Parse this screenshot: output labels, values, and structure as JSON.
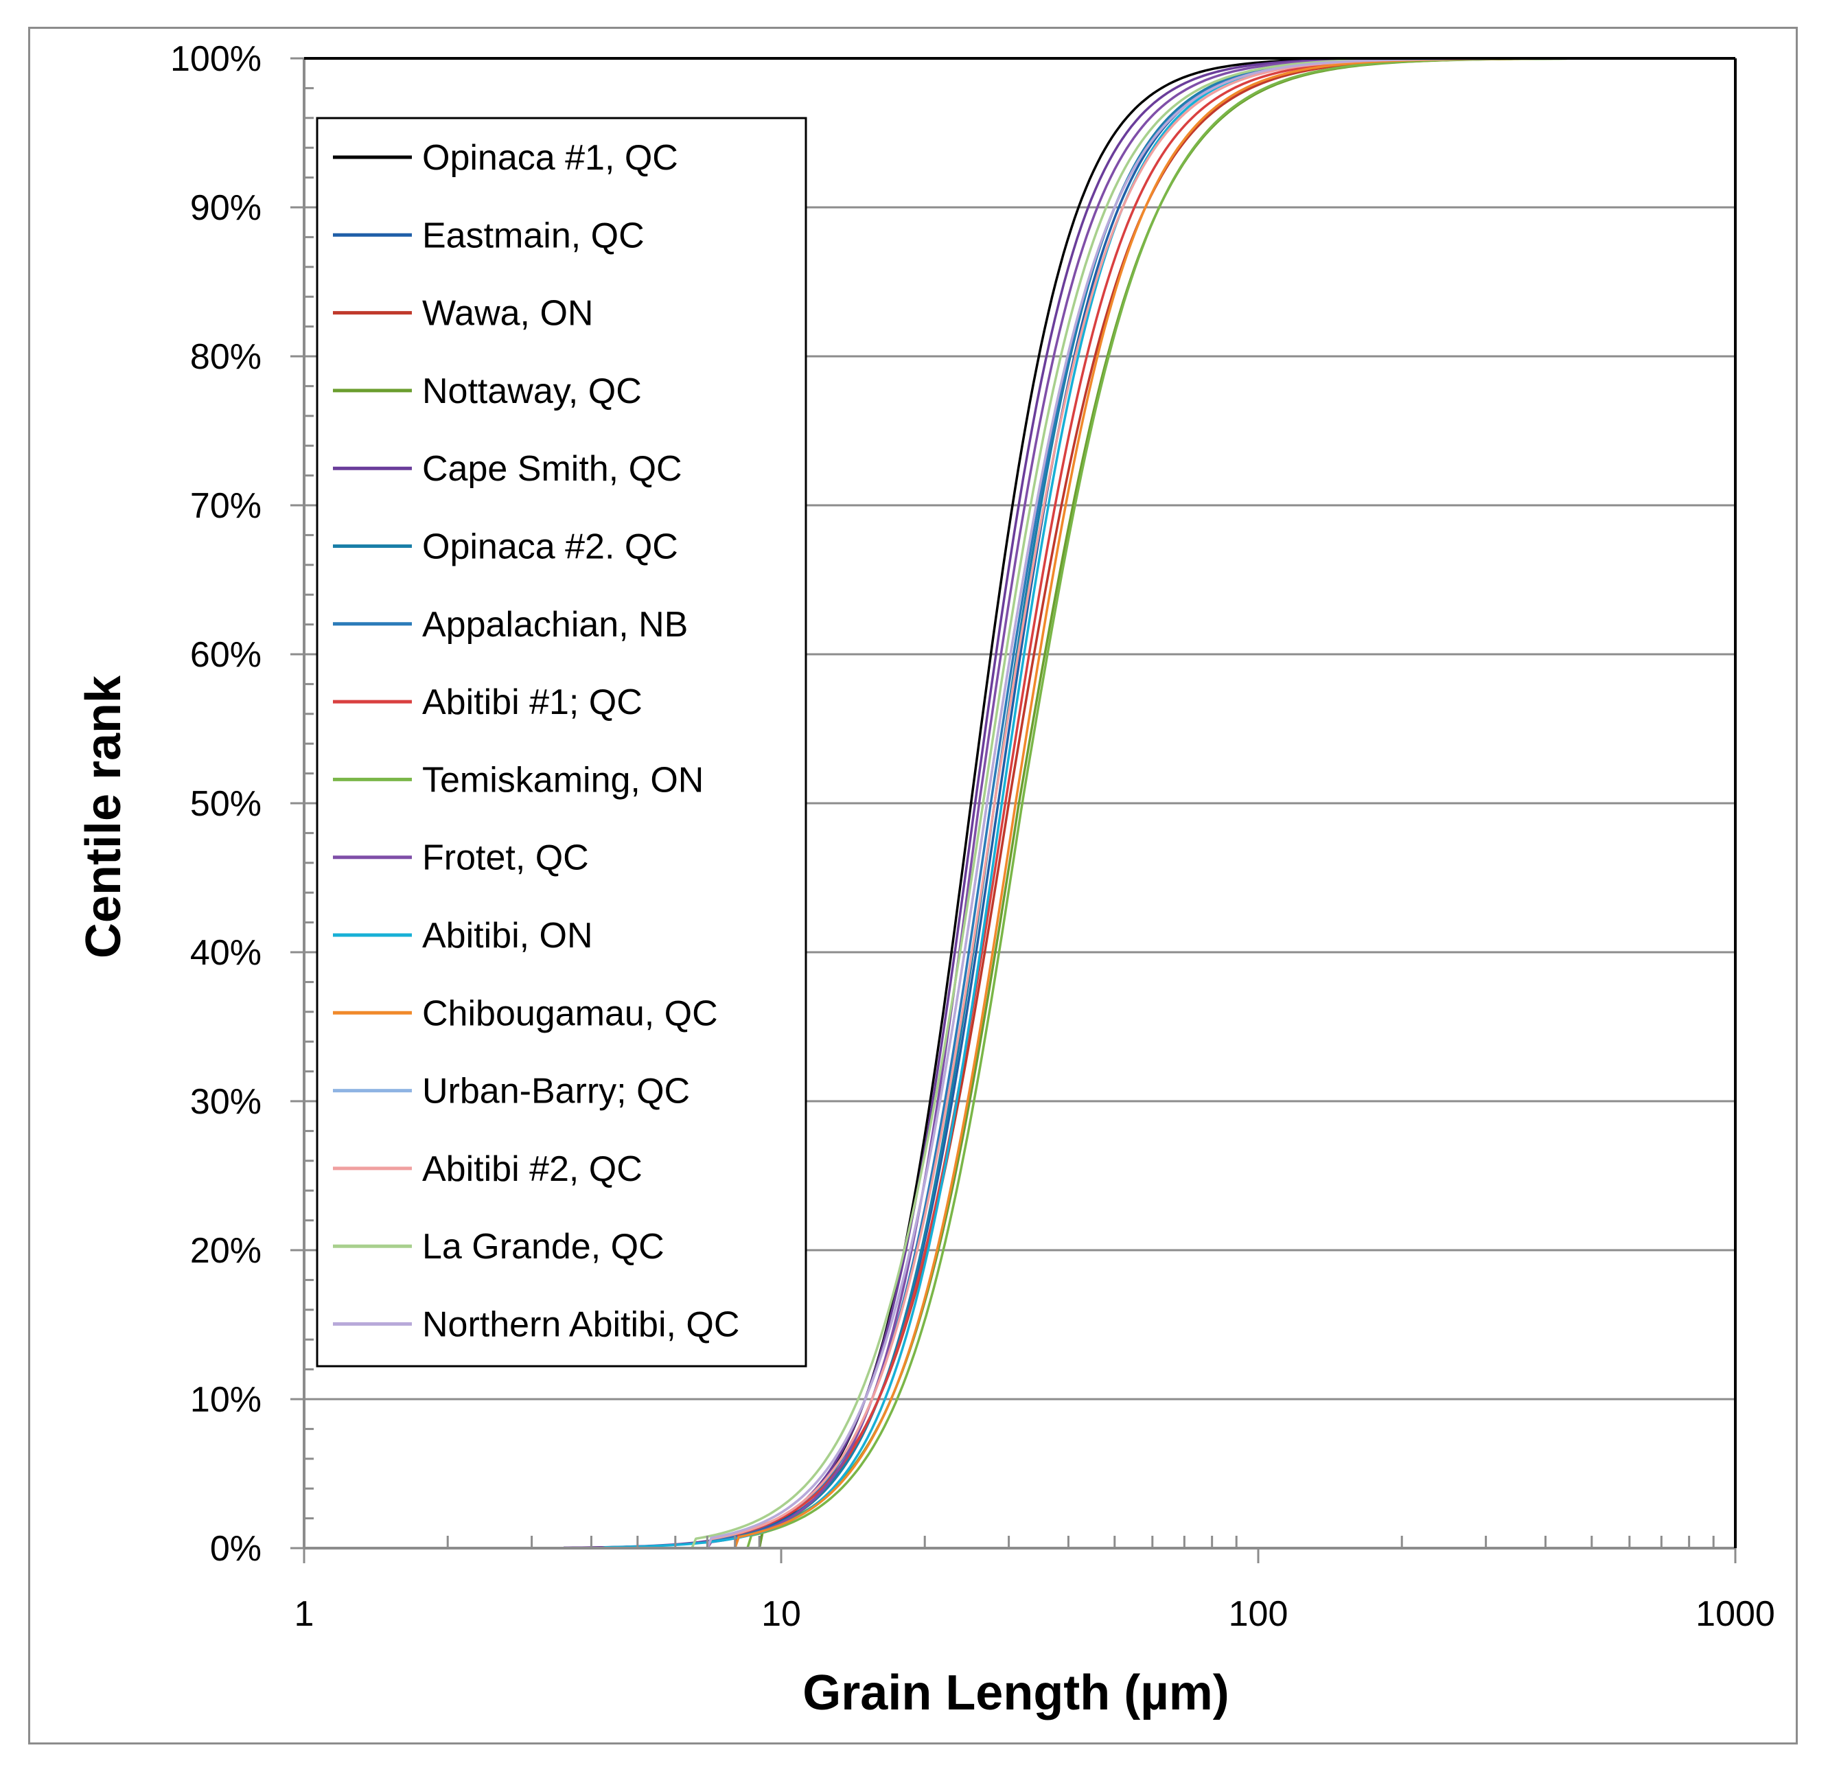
{
  "chart_data": {
    "type": "line",
    "xlabel": "Grain Length (µm)",
    "ylabel": "Centile rank",
    "x_scale": "log",
    "xlim": [
      1,
      1000
    ],
    "ylim": [
      0,
      100
    ],
    "x_tick_labels": [
      "1",
      "10",
      "100",
      "1000"
    ],
    "y_tick_labels": [
      "0%",
      "10%",
      "20%",
      "30%",
      "40%",
      "50%",
      "60%",
      "70%",
      "80%",
      "90%",
      "100%"
    ],
    "grid": "horizontal major",
    "legend_position": "top-left inside",
    "series": [
      {
        "name": "Opinaca #1, QC",
        "color": "#000000",
        "start": 9.0,
        "p10": 15.0,
        "median": 25.0,
        "p90": 42.0,
        "end": 400
      },
      {
        "name": "Eastmain, QC",
        "color": "#1f5fa8",
        "start": 8.0,
        "p10": 16.0,
        "median": 28.5,
        "p90": 51.0,
        "end": 500
      },
      {
        "name": "Wawa, ON",
        "color": "#c0392b",
        "start": 8.0,
        "p10": 16.0,
        "median": 30.0,
        "p90": 58.0,
        "end": 450
      },
      {
        "name": "Nottaway, QC",
        "color": "#6b9e2f",
        "start": 9.0,
        "p10": 17.0,
        "median": 31.5,
        "p90": 62.0,
        "end": 450
      },
      {
        "name": "Cape Smith, QC",
        "color": "#6a3d9a",
        "start": 3.5,
        "p10": 15.0,
        "median": 25.5,
        "p90": 44.0,
        "end": 300
      },
      {
        "name": "Opinaca #2. QC",
        "color": "#1a7fa8",
        "start": 8.0,
        "p10": 16.0,
        "median": 28.0,
        "p90": 50.0,
        "end": 450
      },
      {
        "name": "Appalachian, NB",
        "color": "#2b7bb9",
        "start": 7.0,
        "p10": 15.5,
        "median": 27.5,
        "p90": 50.0,
        "end": 450
      },
      {
        "name": "Abitibi #1; QC",
        "color": "#d94040",
        "start": 8.0,
        "p10": 16.0,
        "median": 29.5,
        "p90": 55.0,
        "end": 450
      },
      {
        "name": "Temiskaming, ON",
        "color": "#7ab648",
        "start": 8.5,
        "p10": 17.5,
        "median": 32.0,
        "p90": 62.0,
        "end": 450
      },
      {
        "name": "Frotet, QC",
        "color": "#7f4fa8",
        "start": 7.0,
        "p10": 15.5,
        "median": 26.0,
        "p90": 46.0,
        "end": 300
      },
      {
        "name": "Abitibi, ON",
        "color": "#17b0d6",
        "start": 4.2,
        "p10": 16.5,
        "median": 29.0,
        "p90": 52.0,
        "end": 500
      },
      {
        "name": "Chibougamau, QC",
        "color": "#f0892b",
        "start": 8.0,
        "p10": 17.0,
        "median": 31.0,
        "p90": 58.0,
        "end": 450
      },
      {
        "name": "Urban-Barry; QC",
        "color": "#8fb4e3",
        "start": 7.0,
        "p10": 15.0,
        "median": 27.0,
        "p90": 50.0,
        "end": 400
      },
      {
        "name": "Abitibi #2, QC",
        "color": "#f0a0a0",
        "start": 7.0,
        "p10": 15.5,
        "median": 28.0,
        "p90": 52.0,
        "end": 400
      },
      {
        "name": "La Grande, QC",
        "color": "#a8d08d",
        "start": 6.5,
        "p10": 14.5,
        "median": 26.5,
        "p90": 48.0,
        "end": 300
      },
      {
        "name": "Northern Abitibi, QC",
        "color": "#b8a9d9",
        "start": 7.0,
        "p10": 15.0,
        "median": 27.0,
        "p90": 50.0,
        "end": 300
      }
    ]
  }
}
